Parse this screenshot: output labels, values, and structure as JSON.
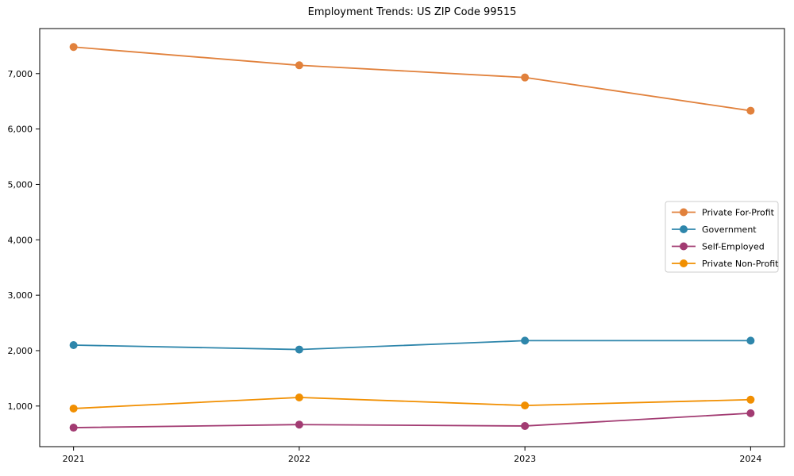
{
  "chart_data": {
    "type": "line",
    "title": "Employment Trends: US ZIP Code 99515",
    "x": [
      2021,
      2022,
      2023,
      2024
    ],
    "x_tick_labels": [
      "2021",
      "2022",
      "2023",
      "2024"
    ],
    "series": [
      {
        "name": "Private For-Profit",
        "color": "#E1813C",
        "values": [
          7480,
          7150,
          6930,
          6330
        ]
      },
      {
        "name": "Government",
        "color": "#2E86AB",
        "values": [
          2100,
          2020,
          2180,
          2180
        ]
      },
      {
        "name": "Self-Employed",
        "color": "#A23B72",
        "values": [
          610,
          665,
          640,
          870
        ]
      },
      {
        "name": "Private Non-Profit",
        "color": "#F18F01",
        "values": [
          955,
          1155,
          1010,
          1115
        ]
      }
    ],
    "yticks": [
      1000,
      2000,
      3000,
      4000,
      5000,
      6000,
      7000
    ],
    "ytick_labels": [
      "1,000",
      "2,000",
      "3,000",
      "4,000",
      "5,000",
      "6,000",
      "7,000"
    ],
    "xlim": [
      2020.85,
      2024.15
    ],
    "ylim": [
      267,
      7813
    ],
    "grid": false,
    "legend_position": "right-center",
    "axis_color": "#000000",
    "tick_label_color": "#000000",
    "legend_border_color": "#cccccc",
    "legend_background": "#ffffff"
  }
}
